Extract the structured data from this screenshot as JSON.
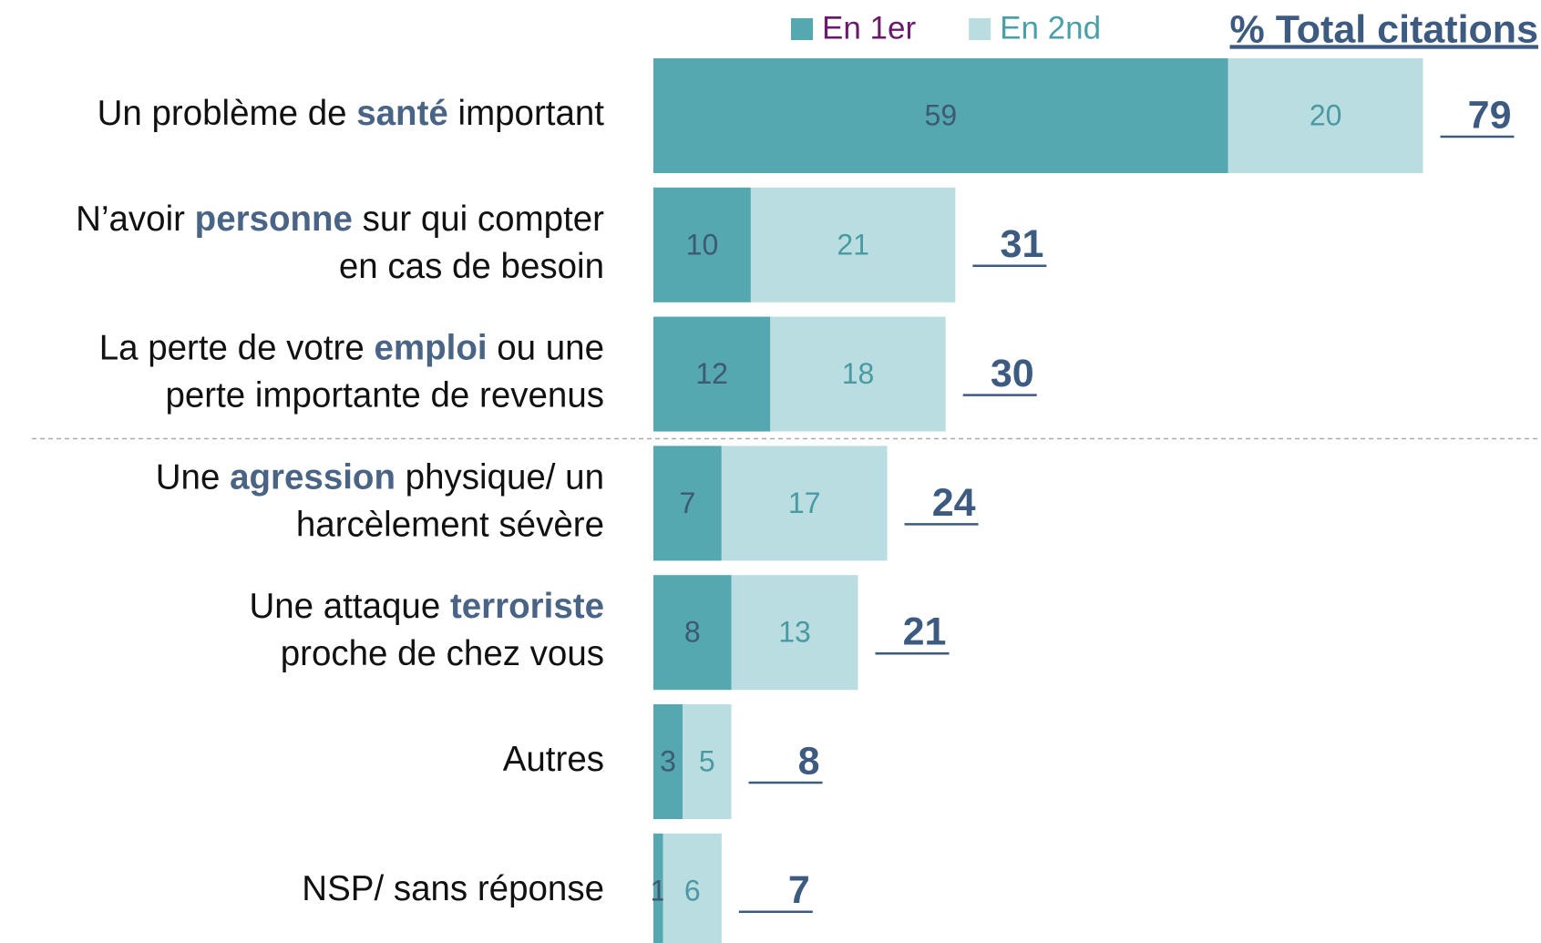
{
  "chart_data": {
    "type": "stacked-bar-horizontal",
    "total_title": "% Total citations",
    "categories": [
      [
        [
          {
            "text": "Un problème de "
          },
          {
            "text": "santé",
            "bold": true
          },
          {
            "text": " important"
          }
        ]
      ],
      [
        [
          {
            "text": "N’avoir "
          },
          {
            "text": "personne",
            "bold": true
          },
          {
            "text": " sur qui compter"
          }
        ],
        [
          {
            "text": "en cas de besoin"
          }
        ]
      ],
      [
        [
          {
            "text": "La perte de votre "
          },
          {
            "text": "emploi",
            "bold": true
          },
          {
            "text": " ou une"
          }
        ],
        [
          {
            "text": "perte importante de revenus"
          }
        ]
      ],
      [
        [
          {
            "text": "Une "
          },
          {
            "text": "agression",
            "bold": true
          },
          {
            "text": " physique/ un"
          }
        ],
        [
          {
            "text": "harcèlement sévère"
          }
        ]
      ],
      [
        [
          {
            "text": "Une attaque "
          },
          {
            "text": "terroriste",
            "bold": true
          }
        ],
        [
          {
            "text": "proche de chez vous"
          }
        ]
      ],
      [
        [
          {
            "text": "Autres"
          }
        ]
      ],
      [
        [
          {
            "text": "NSP/ sans réponse"
          }
        ]
      ]
    ],
    "series": [
      {
        "name": "En 1er",
        "color": "#55a7b0",
        "label_color": "#3d5a73",
        "legend_color": "#6a1a6a",
        "values": [
          59,
          10,
          12,
          7,
          8,
          3,
          1
        ]
      },
      {
        "name": "En 2nd",
        "color": "#b9dde0",
        "label_color": "#4a9aa3",
        "legend_color": "#4aa0a8",
        "values": [
          20,
          21,
          18,
          17,
          13,
          5,
          6
        ]
      }
    ],
    "totals": [
      79,
      31,
      30,
      24,
      21,
      8,
      7
    ]
  }
}
